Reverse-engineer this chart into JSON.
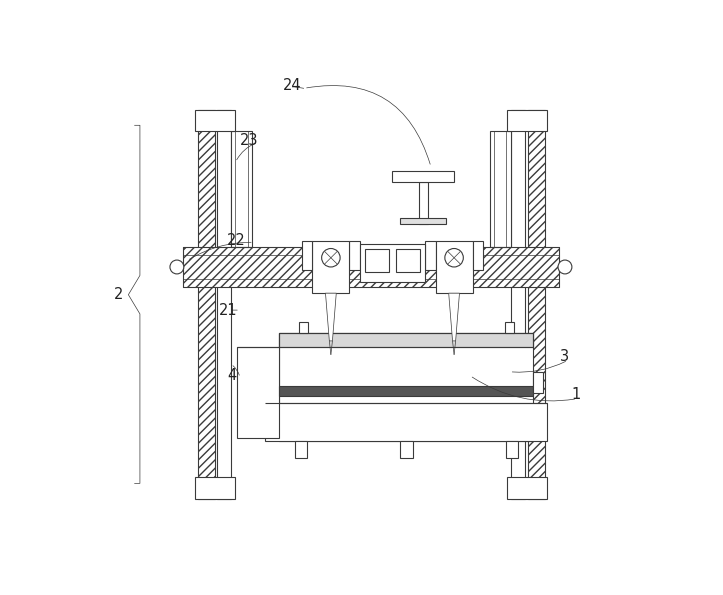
{
  "bg_color": "#ffffff",
  "lc": "#3a3a3a",
  "lw": 0.8,
  "lw_thick": 1.2,
  "lw_thin": 0.5,
  "fs": 10.5,
  "label_color": "#222222"
}
